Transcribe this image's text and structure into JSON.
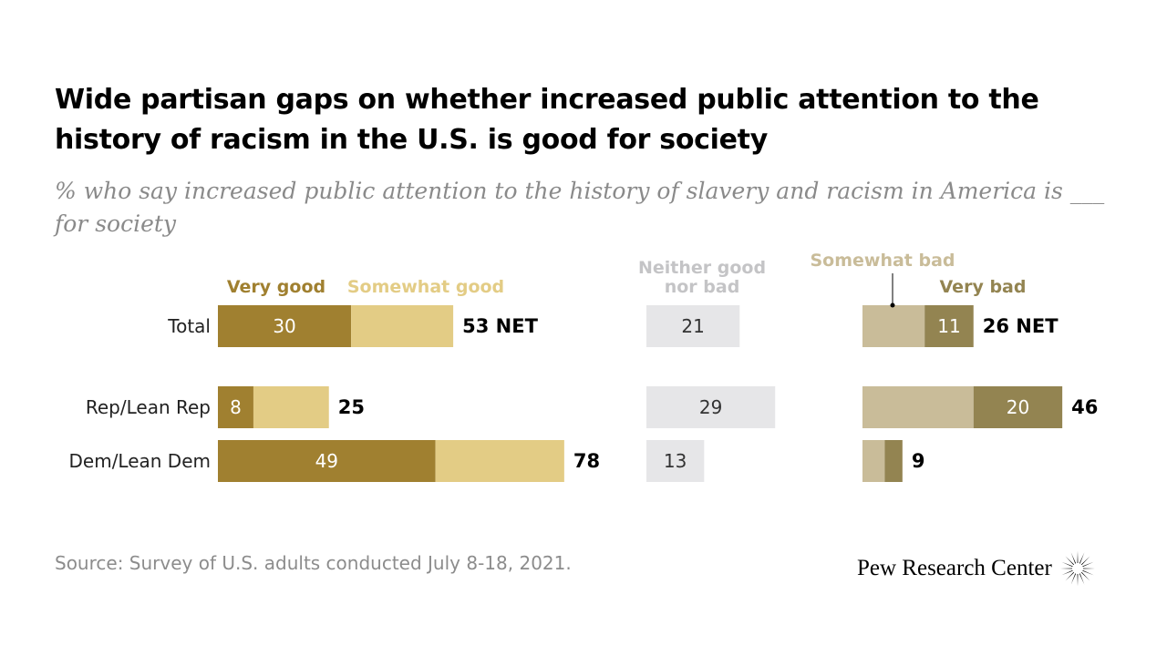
{
  "title": "Wide partisan gaps on whether increased public attention to the history of racism in the U.S. is good for society",
  "subtitle": "% who say increased public attention to the history of slavery and racism in America is ___ for society",
  "source": "Source: Survey of U.S. adults conducted July 8-18, 2021.",
  "brand": {
    "name": "Pew Research Center",
    "logo_icon": "pew-sunburst-icon"
  },
  "colors": {
    "very_good": "#a08030",
    "somewhat_good": "#e3cc85",
    "neither": "#e6e6e8",
    "somewhat_bad": "#c9bc99",
    "very_bad": "#938451",
    "label_text_light": "#ffffff",
    "label_text_dark": "#333333"
  },
  "chart_data": {
    "type": "bar",
    "orientation": "horizontal",
    "stacked": true,
    "categories": [
      "Total",
      "Rep/Lean Rep",
      "Dem/Lean Dem"
    ],
    "groups": [
      {
        "id": "good",
        "series": [
          {
            "name": "Very good",
            "values": [
              30,
              8,
              49
            ],
            "color": "#a08030",
            "labels": [
              "30",
              "8",
              "49"
            ]
          },
          {
            "name": "Somewhat good",
            "values": [
              23,
              17,
              29
            ],
            "color": "#e3cc85",
            "labels": [
              "",
              "",
              ""
            ]
          }
        ],
        "net_labels": [
          "53 NET",
          "25",
          "78"
        ]
      },
      {
        "id": "neither",
        "series": [
          {
            "name": "Neither good nor bad",
            "values": [
              21,
              29,
              13
            ],
            "color": "#e6e6e8",
            "labels": [
              "21",
              "29",
              "13"
            ]
          }
        ],
        "net_labels": [
          "",
          "",
          ""
        ]
      },
      {
        "id": "bad",
        "series": [
          {
            "name": "Somewhat bad",
            "values": [
              14,
              25,
              5
            ],
            "color": "#c9bc99",
            "labels": [
              "",
              "",
              ""
            ]
          },
          {
            "name": "Very bad",
            "values": [
              11,
              20,
              4
            ],
            "color": "#938451",
            "labels": [
              "11",
              "20",
              ""
            ]
          }
        ],
        "net_labels": [
          "26 NET",
          "46",
          "9"
        ]
      }
    ],
    "legend": {
      "very_good": "Very good",
      "somewhat_good": "Somewhat good",
      "neither_line1": "Neither good",
      "neither_line2": "nor bad",
      "somewhat_bad": "Somewhat bad",
      "very_bad": "Very bad"
    },
    "xlim": [
      0,
      100
    ],
    "grid": false
  }
}
